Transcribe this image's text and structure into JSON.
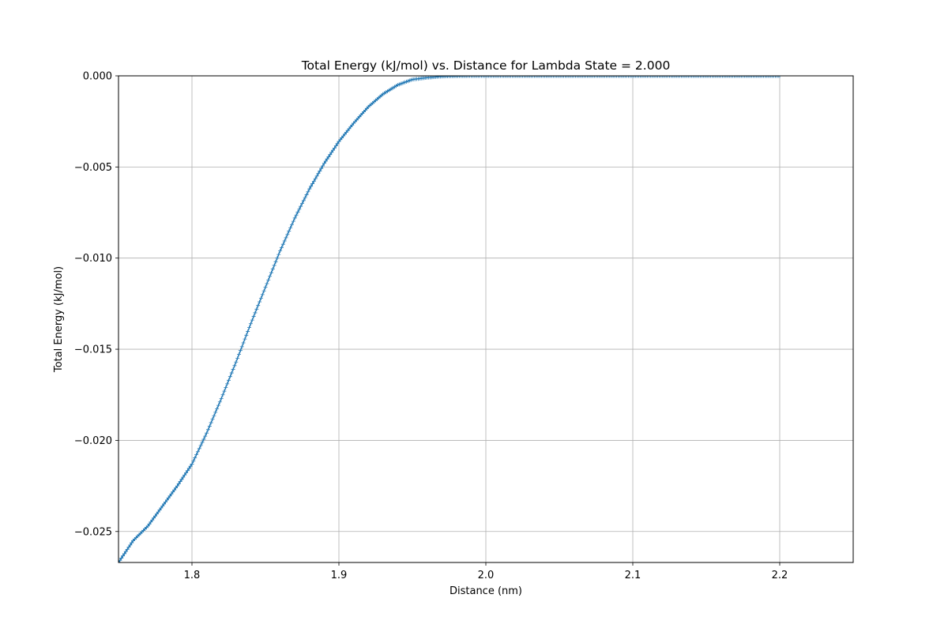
{
  "chart_data": {
    "type": "line",
    "title": "Total Energy (kJ/mol) vs. Distance for Lambda State = 2.000",
    "xlabel": "Distance (nm)",
    "ylabel": "Total Energy (kJ/mol)",
    "xlim": [
      1.75,
      2.25
    ],
    "ylim": [
      -0.0267,
      0.0
    ],
    "xticks": [
      1.8,
      1.9,
      2.0,
      2.1,
      2.2
    ],
    "xtick_labels": [
      "1.8",
      "1.9",
      "2.0",
      "2.1",
      "2.2"
    ],
    "yticks": [
      0.0,
      -0.005,
      -0.01,
      -0.015,
      -0.02,
      -0.025
    ],
    "ytick_labels": [
      "0.000",
      "−0.005",
      "−0.010",
      "−0.015",
      "−0.020",
      "−0.025"
    ],
    "grid": true,
    "marker": "plus",
    "color": "#1f77b4",
    "series": [
      {
        "x": [
          1.75,
          1.76,
          1.77,
          1.78,
          1.79,
          1.8,
          1.81,
          1.82,
          1.83,
          1.84,
          1.85,
          1.86,
          1.87,
          1.88,
          1.89,
          1.9,
          1.91,
          1.92,
          1.93,
          1.94,
          1.95,
          1.96,
          1.97,
          1.98,
          1.99,
          2.0,
          2.05,
          2.1,
          2.15,
          2.2
        ],
        "y": [
          -0.0267,
          -0.0255,
          -0.0247,
          -0.0236,
          -0.0225,
          -0.0213,
          -0.0196,
          -0.0177,
          -0.0157,
          -0.0136,
          -0.0116,
          -0.0096,
          -0.0078,
          -0.0062,
          -0.0048,
          -0.0036,
          -0.0026,
          -0.0017,
          -0.001,
          -0.0005,
          -0.0002,
          -0.0001,
          -3e-05,
          -1e-05,
          0.0,
          0.0,
          0.0,
          0.0,
          0.0,
          0.0
        ]
      }
    ]
  }
}
